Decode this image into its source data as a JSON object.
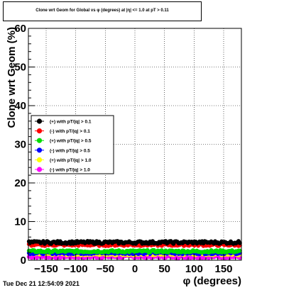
{
  "chart_data": {
    "type": "scatter",
    "title": "Clone wrt Geom for Global vs φ (degrees) at |η| <= 1.0 at pT > 0.11",
    "xlabel": "φ (degrees)",
    "ylabel": "Clone wrt Geom (%)",
    "xlim": [
      -180,
      180
    ],
    "ylim": [
      0,
      60
    ],
    "xticks": [
      -150,
      -100,
      -50,
      0,
      50,
      100,
      150
    ],
    "xtick_labels": [
      "−150",
      "−100",
      "−50",
      "0",
      "50",
      "100",
      "150"
    ],
    "yticks": [
      0,
      10,
      20,
      30,
      40,
      50,
      60
    ],
    "ytick_labels": [
      "0",
      "10",
      "20",
      "30",
      "40",
      "50",
      "60"
    ],
    "grid": true,
    "legend_placement": "center-left",
    "series": [
      {
        "name": "(+) with pT/|q| > 0.1",
        "color": "#000000",
        "level": 4.6,
        "jitter": 0.35
      },
      {
        "name": "(-) with pT/|q| > 0.1",
        "color": "#ff0000",
        "level": 4.0,
        "jitter": 0.3
      },
      {
        "name": "(+) with pT/|q| > 0.5",
        "color": "#00dd00",
        "level": 2.3,
        "jitter": 0.3
      },
      {
        "name": "(-) with pT/|q| > 0.5",
        "color": "#0000ff",
        "level": 1.9,
        "jitter": 0.3
      },
      {
        "name": "(+) with pT/|q| > 1.0",
        "color": "#ffff00",
        "level": 1.6,
        "jitter": 0.3
      },
      {
        "name": "(-) with pT/|q| > 1.0",
        "color": "#ff00ff",
        "level": 0.9,
        "jitter": 0.3
      }
    ]
  },
  "timestamp": "Tue Dec 21 12:54:09 2021"
}
